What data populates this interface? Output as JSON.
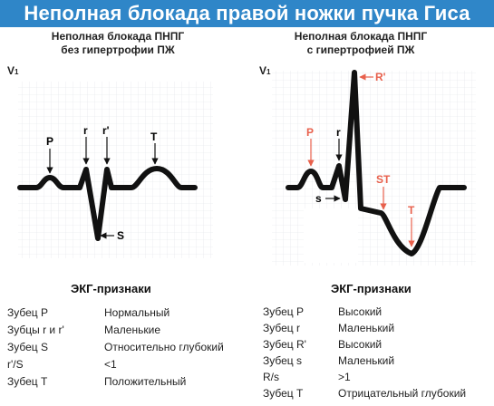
{
  "title": "Неполная блокада правой ножки пучка Гиса",
  "left": {
    "subtitle_line1": "Неполная блокада ПНПГ",
    "subtitle_line2": "без гипертрофии ПЖ",
    "lead": "V",
    "lead_index": "1",
    "wave_labels": {
      "p": "P",
      "r": "r",
      "r_prime": "r'",
      "t": "T",
      "s": "S"
    },
    "section_title": "ЭКГ-признаки",
    "rows": [
      {
        "feature": "Зубец P",
        "value": "Нормальный"
      },
      {
        "feature": "Зубцы r и r'",
        "value": "Маленькие"
      },
      {
        "feature": "Зубец S",
        "value": "Относительно глубокий"
      },
      {
        "feature": "r'/S",
        "value": "<1"
      },
      {
        "feature": "Зубец T",
        "value": "Положительный"
      }
    ]
  },
  "right": {
    "subtitle_line1": "Неполная блокада ПНПГ",
    "subtitle_line2": "с гипертрофией ПЖ",
    "lead": "V",
    "lead_index": "1",
    "wave_labels": {
      "p": "P",
      "r": "r",
      "r_prime": "R'",
      "s": "s",
      "st": "ST",
      "t": "T"
    },
    "section_title": "ЭКГ-признаки",
    "rows": [
      {
        "feature": "Зубец P",
        "value": "Высокий"
      },
      {
        "feature": "Зубец r",
        "value": "Маленький"
      },
      {
        "feature": "Зубец R'",
        "value": "Высокий"
      },
      {
        "feature": "Зубец s",
        "value": "Маленький"
      },
      {
        "feature": "R/s",
        "value": ">1"
      },
      {
        "feature": "Зубец T",
        "value": "Отрицательный глубокий"
      }
    ]
  },
  "colors": {
    "banner": "#2f86c8",
    "accent": "#e8604c",
    "trace": "#111111",
    "ecg_grid": "#dfe3e8"
  }
}
